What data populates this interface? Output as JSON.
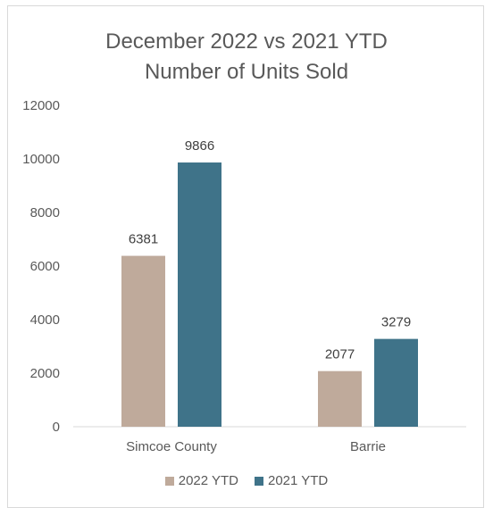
{
  "chart_data": {
    "type": "bar",
    "title_line1": "December 2022 vs 2021 YTD",
    "title_line2": "Number of Units Sold",
    "categories": [
      "Simcoe County",
      "Barrie"
    ],
    "series": [
      {
        "name": "2022 YTD",
        "color": "#bfaa9b",
        "values": [
          6381,
          2077
        ]
      },
      {
        "name": "2021 YTD",
        "color": "#3f7389",
        "values": [
          9866,
          3279
        ]
      }
    ],
    "ylim": [
      0,
      12000
    ],
    "yticks": [
      0,
      2000,
      4000,
      6000,
      8000,
      10000,
      12000
    ],
    "grid": false,
    "legend_position": "bottom"
  }
}
